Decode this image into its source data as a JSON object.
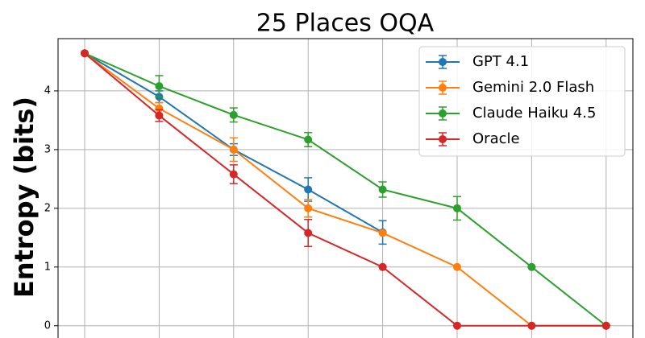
{
  "chart_data": {
    "type": "line",
    "title": "25 Places OQA",
    "y_label": "Entropy (bits)",
    "categories": [
      null,
      null,
      null,
      null,
      null,
      null,
      null,
      null
    ],
    "ylim": [
      -0.25,
      4.89
    ],
    "yticks": [
      0,
      1,
      2,
      3,
      4
    ],
    "grid": true,
    "legend": "upper right",
    "series": [
      {
        "name": "GPT 4.1",
        "color": "#1f77b4",
        "values": [
          4.64,
          3.9,
          3.0,
          2.32,
          1.59,
          null,
          null,
          null
        ],
        "errors": [
          0,
          0.1,
          0.1,
          0.2,
          0.2,
          null,
          null,
          null
        ]
      },
      {
        "name": "Gemini 2.0 Flash",
        "color": "#ff7f0e",
        "values": [
          4.64,
          3.7,
          3.0,
          2.0,
          1.58,
          1.0,
          0,
          0
        ],
        "errors": [
          0,
          0.1,
          0.2,
          0.15,
          0,
          0,
          0,
          0
        ]
      },
      {
        "name": "Claude Haiku 4.5",
        "color": "#2ca02c",
        "values": [
          4.64,
          4.08,
          3.59,
          3.17,
          2.32,
          2.0,
          1.0,
          0
        ],
        "errors": [
          0,
          0.18,
          0.12,
          0.12,
          0.13,
          0.2,
          0,
          0
        ]
      },
      {
        "name": "Oracle",
        "color": "#d62728",
        "values": [
          4.64,
          3.58,
          2.58,
          1.58,
          1.0,
          0,
          0,
          0
        ],
        "errors": [
          0,
          0.1,
          0.16,
          0.23,
          0,
          0,
          0,
          0
        ]
      }
    ]
  }
}
